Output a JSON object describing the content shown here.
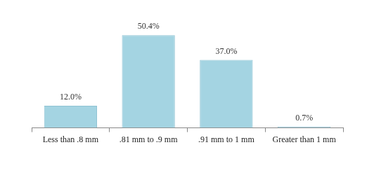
{
  "chart_data": {
    "type": "bar",
    "categories": [
      "Less than .8 mm",
      ".81 mm to .9 mm",
      ".91 mm to 1 mm",
      "Greater than 1 mm"
    ],
    "values": [
      12.0,
      50.4,
      37.0,
      0.7
    ],
    "value_labels": [
      "12.0%",
      "50.4%",
      "37.0%",
      "0.7%"
    ],
    "color": "#a4d4e2",
    "data_labels": true,
    "tick_labels": "x",
    "grid": false
  }
}
